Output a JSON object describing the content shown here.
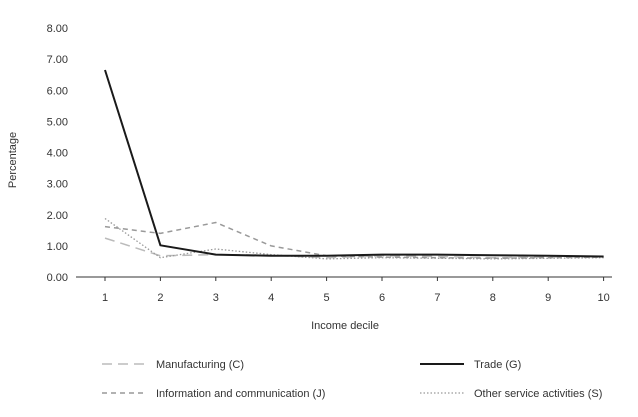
{
  "chart_data": {
    "type": "line",
    "title": "",
    "xlabel": "Income decile",
    "ylabel": "Percentage",
    "x": [
      1,
      2,
      3,
      4,
      5,
      6,
      7,
      8,
      9,
      10
    ],
    "ylim": [
      0,
      8
    ],
    "yticks": [
      "0.00",
      "1.00",
      "2.00",
      "3.00",
      "4.00",
      "5.00",
      "6.00",
      "7.00",
      "8.00"
    ],
    "grid": false,
    "legend_position": "bottom",
    "series": [
      {
        "name": "Manufacturing (C)",
        "style": "long-dash",
        "color": "#bbbbbb",
        "values": [
          1.25,
          0.68,
          0.72,
          0.7,
          0.62,
          0.68,
          0.66,
          0.62,
          0.64,
          0.66
        ]
      },
      {
        "name": "Trade (G)",
        "style": "solid",
        "color": "#1a1a1a",
        "values": [
          6.65,
          1.02,
          0.72,
          0.68,
          0.68,
          0.72,
          0.72,
          0.7,
          0.68,
          0.66
        ]
      },
      {
        "name": "Information and communication (J)",
        "style": "short-dash",
        "color": "#999999",
        "values": [
          1.62,
          1.4,
          1.75,
          1.0,
          0.68,
          0.64,
          0.62,
          0.6,
          0.62,
          0.64
        ]
      },
      {
        "name": "Other service activities (S)",
        "style": "dotted",
        "color": "#999999",
        "values": [
          1.88,
          0.62,
          0.9,
          0.72,
          0.58,
          0.62,
          0.6,
          0.58,
          0.6,
          0.62
        ]
      }
    ]
  }
}
